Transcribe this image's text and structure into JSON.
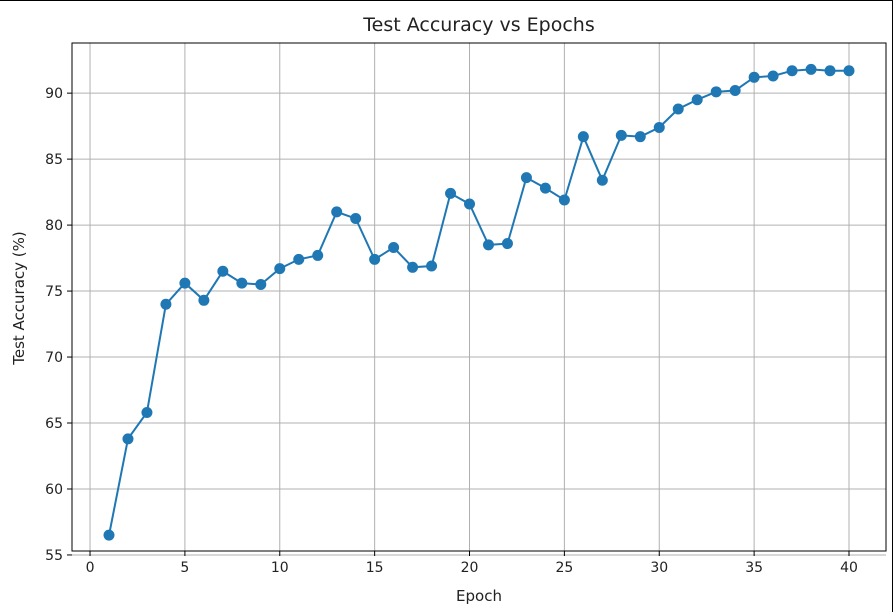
{
  "chart_data": {
    "type": "line",
    "title": "Test Accuracy vs Epochs",
    "xlabel": "Epoch",
    "ylabel": "Test Accuracy (%)",
    "xlim": [
      -0.95,
      41.95
    ],
    "ylim": [
      55.3,
      93.8
    ],
    "x_ticks": [
      0,
      5,
      10,
      15,
      20,
      25,
      30,
      35,
      40
    ],
    "y_ticks": [
      55,
      60,
      65,
      70,
      75,
      80,
      85,
      90
    ],
    "grid": true,
    "legend": "none",
    "color": "#1f77b4",
    "marker": "circle",
    "series": [
      {
        "x": [
          1,
          2,
          3,
          4,
          5,
          6,
          7,
          8,
          9,
          10,
          11,
          12,
          13,
          14,
          15,
          16,
          17,
          18,
          19,
          20,
          21,
          22,
          23,
          24,
          25,
          26,
          27,
          28,
          29,
          30,
          31,
          32,
          33,
          34,
          35,
          36,
          37,
          38,
          39,
          40
        ],
        "values": [
          56.5,
          63.8,
          65.8,
          74.0,
          75.6,
          74.3,
          76.5,
          75.6,
          75.5,
          76.7,
          77.4,
          77.7,
          81.0,
          80.5,
          77.4,
          78.3,
          76.8,
          76.9,
          82.4,
          81.6,
          78.5,
          78.6,
          83.6,
          82.8,
          81.9,
          86.7,
          83.4,
          86.8,
          86.7,
          87.4,
          88.8,
          89.5,
          90.1,
          90.2,
          91.2,
          91.3,
          91.7,
          91.8,
          91.7,
          91.7
        ]
      }
    ]
  }
}
